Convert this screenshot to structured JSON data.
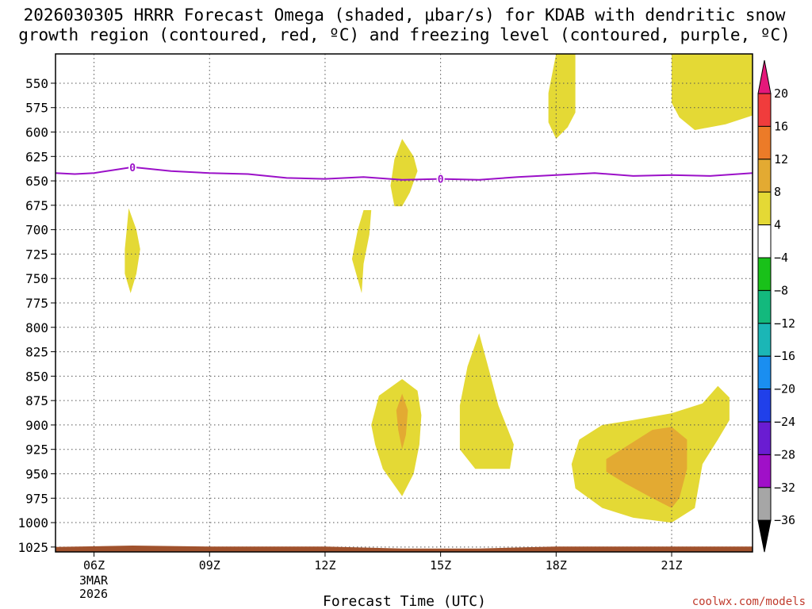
{
  "chart_data": {
    "type": "heatmap",
    "title_lines": [
      "2026030305 HRRR Forecast Omega (shaded, μbar/s) for KDAB with dendritic snow",
      "growth region (contoured, red, ºC) and freezing level (contoured, purple, ºC)"
    ],
    "xlabel": "Forecast Time (UTC)",
    "x_range_hours": [
      5,
      23.1
    ],
    "x_ticks": [
      {
        "hour": 6,
        "label": "06Z"
      },
      {
        "hour": 9,
        "label": "09Z"
      },
      {
        "hour": 12,
        "label": "12Z"
      },
      {
        "hour": 15,
        "label": "15Z"
      },
      {
        "hour": 18,
        "label": "18Z"
      },
      {
        "hour": 21,
        "label": "21Z"
      }
    ],
    "date_lines": [
      "3MAR",
      "2026"
    ],
    "y_range_hpa": [
      1030,
      520
    ],
    "y_ticks": [
      550,
      575,
      600,
      625,
      650,
      675,
      700,
      725,
      750,
      775,
      800,
      825,
      850,
      875,
      900,
      925,
      950,
      975,
      1000,
      1025
    ],
    "colorbar": {
      "labels": [
        "20",
        "16",
        "12",
        "8",
        "4",
        "−4",
        "−8",
        "−12",
        "−16",
        "−20",
        "−24",
        "−28",
        "−32",
        "−36"
      ],
      "colors": [
        "#e4187a",
        "#f03c3c",
        "#ec7b28",
        "#e3aa32",
        "#e4d935",
        "#ffffff",
        "#19c119",
        "#13b97d",
        "#1bb6b6",
        "#1a8ef0",
        "#2040ea",
        "#6a1cd2",
        "#a010c8",
        "#a6a6a6",
        "#000000"
      ]
    },
    "freezing_level": {
      "label": "0",
      "color": "#9b10c8",
      "points": [
        [
          5.0,
          642
        ],
        [
          5.5,
          643
        ],
        [
          6.0,
          642
        ],
        [
          6.5,
          639
        ],
        [
          7.0,
          636
        ],
        [
          7.5,
          638
        ],
        [
          8.0,
          640
        ],
        [
          9.0,
          642
        ],
        [
          10.0,
          643
        ],
        [
          11.0,
          647
        ],
        [
          12.0,
          648
        ],
        [
          13.0,
          646
        ],
        [
          14.0,
          649
        ],
        [
          15.0,
          648
        ],
        [
          16.0,
          649
        ],
        [
          17.0,
          646
        ],
        [
          18.0,
          644
        ],
        [
          19.0,
          642
        ],
        [
          20.0,
          645
        ],
        [
          21.0,
          644
        ],
        [
          22.0,
          645
        ],
        [
          23.1,
          642
        ]
      ],
      "label_positions": [
        [
          7.0,
          636
        ],
        [
          15.0,
          648
        ]
      ]
    },
    "omega_regions": [
      {
        "level": "4-8",
        "color": "#e4d935",
        "points": [
          [
            18.0,
            520
          ],
          [
            18.5,
            520
          ],
          [
            18.5,
            580
          ],
          [
            18.3,
            595
          ],
          [
            18.0,
            607
          ],
          [
            17.8,
            590
          ],
          [
            17.8,
            560
          ]
        ]
      },
      {
        "level": "4-8",
        "color": "#e4d935",
        "points": [
          [
            21.0,
            520
          ],
          [
            23.1,
            520
          ],
          [
            23.1,
            583
          ],
          [
            22.4,
            592
          ],
          [
            21.6,
            598
          ],
          [
            21.2,
            585
          ],
          [
            21.0,
            570
          ],
          [
            21.0,
            540
          ]
        ]
      },
      {
        "level": "4-8",
        "color": "#e4d935",
        "points": [
          [
            14.0,
            607
          ],
          [
            14.3,
            625
          ],
          [
            14.4,
            640
          ],
          [
            14.2,
            662
          ],
          [
            14.0,
            676
          ],
          [
            13.8,
            676
          ],
          [
            13.7,
            655
          ],
          [
            13.8,
            628
          ]
        ]
      },
      {
        "level": "4-8",
        "color": "#e4d935",
        "points": [
          [
            6.9,
            678
          ],
          [
            7.1,
            700
          ],
          [
            7.2,
            720
          ],
          [
            7.1,
            745
          ],
          [
            6.95,
            765
          ],
          [
            6.8,
            745
          ],
          [
            6.8,
            720
          ],
          [
            6.85,
            700
          ]
        ]
      },
      {
        "level": "4-8",
        "color": "#e4d935",
        "points": [
          [
            13.0,
            680
          ],
          [
            13.2,
            680
          ],
          [
            13.15,
            705
          ],
          [
            13.0,
            735
          ],
          [
            12.95,
            765
          ],
          [
            12.7,
            730
          ],
          [
            12.85,
            700
          ]
        ]
      },
      {
        "level": "4-8",
        "color": "#e4d935",
        "points": [
          [
            14.0,
            853
          ],
          [
            14.4,
            865
          ],
          [
            14.5,
            890
          ],
          [
            14.45,
            920
          ],
          [
            14.3,
            950
          ],
          [
            14.0,
            973
          ],
          [
            13.5,
            945
          ],
          [
            13.3,
            920
          ],
          [
            13.2,
            900
          ],
          [
            13.4,
            870
          ]
        ]
      },
      {
        "level": "8-12",
        "color": "#e3aa32",
        "points": [
          [
            14.0,
            868
          ],
          [
            14.15,
            885
          ],
          [
            14.1,
            910
          ],
          [
            14.0,
            925
          ],
          [
            13.9,
            905
          ],
          [
            13.85,
            885
          ]
        ]
      },
      {
        "level": "4-8",
        "color": "#e4d935",
        "points": [
          [
            16.0,
            806
          ],
          [
            16.3,
            850
          ],
          [
            16.5,
            880
          ],
          [
            16.7,
            900
          ],
          [
            16.9,
            920
          ],
          [
            16.8,
            945
          ],
          [
            15.9,
            945
          ],
          [
            15.5,
            925
          ],
          [
            15.5,
            880
          ],
          [
            15.7,
            840
          ]
        ]
      },
      {
        "level": "4-8",
        "color": "#e4d935",
        "points": [
          [
            20.0,
            895
          ],
          [
            21.0,
            888
          ],
          [
            21.8,
            878
          ],
          [
            22.2,
            860
          ],
          [
            22.5,
            872
          ],
          [
            22.5,
            895
          ],
          [
            22.2,
            915
          ],
          [
            21.8,
            940
          ],
          [
            21.6,
            985
          ],
          [
            21.0,
            1000
          ],
          [
            20.0,
            995
          ],
          [
            19.2,
            985
          ],
          [
            18.5,
            965
          ],
          [
            18.4,
            940
          ],
          [
            18.6,
            915
          ],
          [
            19.2,
            900
          ]
        ]
      },
      {
        "level": "8-12",
        "color": "#e3aa32",
        "points": [
          [
            19.3,
            935
          ],
          [
            20.5,
            905
          ],
          [
            21.0,
            902
          ],
          [
            21.4,
            915
          ],
          [
            21.4,
            945
          ],
          [
            21.2,
            975
          ],
          [
            21.0,
            985
          ],
          [
            20.5,
            975
          ],
          [
            19.8,
            960
          ],
          [
            19.3,
            948
          ]
        ]
      }
    ],
    "terrain": {
      "color": "#a0522d",
      "surface_hpa": [
        [
          5.0,
          1025
        ],
        [
          7.0,
          1023.5
        ],
        [
          9.0,
          1024.5
        ],
        [
          12.0,
          1024.5
        ],
        [
          14.0,
          1026.5
        ],
        [
          16.0,
          1026.5
        ],
        [
          18.0,
          1024.5
        ],
        [
          23.1,
          1024.5
        ]
      ]
    },
    "credit": "coolwx.com/models"
  }
}
